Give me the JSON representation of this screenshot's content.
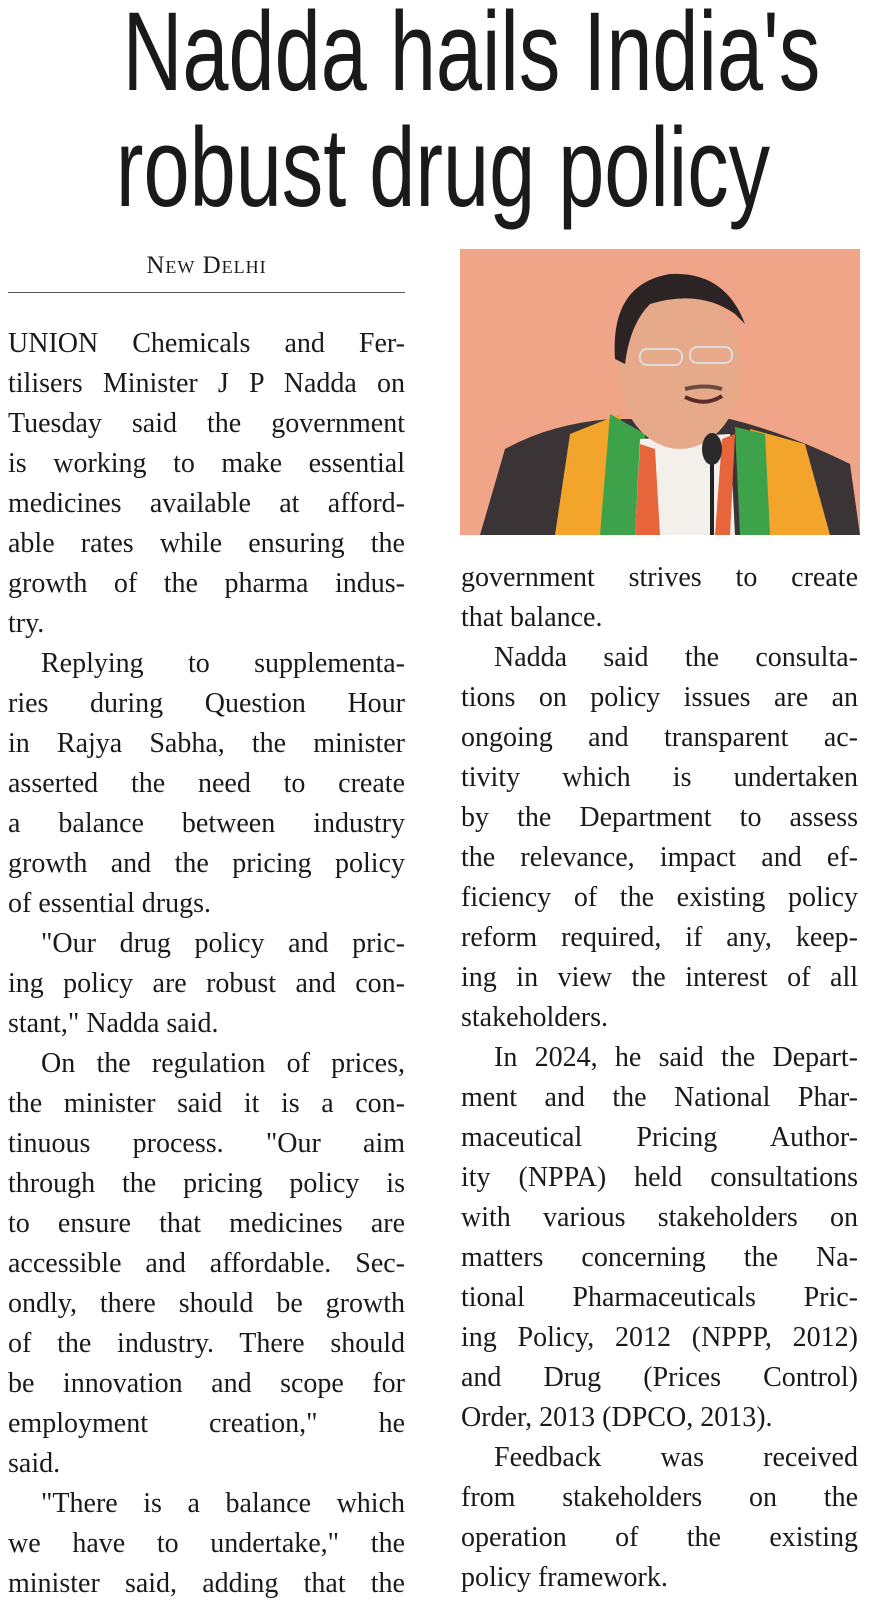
{
  "headline": {
    "line1": "Nadda hails India's",
    "line2": "robust drug policy"
  },
  "dateline": "New Delhi",
  "photo": {
    "subject": "smiling man in glasses with saffron and green scarf at microphone",
    "background_color": "#f0a488"
  },
  "columns": {
    "left": [
      {
        "t": "UNION Chemicals and Fer-"
      },
      {
        "t": "tilisers Minister J P Nadda on"
      },
      {
        "t": "Tuesday said the government"
      },
      {
        "t": "is working to make essential"
      },
      {
        "t": "medicines available at afford-"
      },
      {
        "t": "able rates while ensuring the"
      },
      {
        "t": "growth of the pharma indus-"
      },
      {
        "t": "try.",
        "end": true
      },
      {
        "t": "Replying to supplementa-",
        "ind": true
      },
      {
        "t": "ries during Question Hour"
      },
      {
        "t": "in Rajya Sabha, the minister"
      },
      {
        "t": "asserted the need to create"
      },
      {
        "t": "a balance between industry"
      },
      {
        "t": "growth and the pricing policy"
      },
      {
        "t": "of essential drugs.",
        "end": true
      },
      {
        "t": "\"Our drug policy and pric-",
        "ind": true
      },
      {
        "t": "ing policy are robust and con-"
      },
      {
        "t": "stant,\" Nadda said.",
        "end": true
      },
      {
        "t": "On the regulation of prices,",
        "ind": true
      },
      {
        "t": "the minister said it is a con-"
      },
      {
        "t": "tinuous process. \"Our aim"
      },
      {
        "t": "through the pricing policy is"
      },
      {
        "t": "to ensure that medicines are"
      },
      {
        "t": "accessible and affordable. Sec-"
      },
      {
        "t": "ondly, there should be growth"
      },
      {
        "t": "of the industry. There should"
      },
      {
        "t": "be innovation and scope for"
      },
      {
        "t": "employment creation,\" he"
      },
      {
        "t": "said.",
        "end": true
      },
      {
        "t": "\"There is a balance which",
        "ind": true
      },
      {
        "t": "we have to undertake,\" the"
      },
      {
        "t": "minister said, adding that the"
      }
    ],
    "right": [
      {
        "t": "government strives to create"
      },
      {
        "t": "that balance.",
        "end": true
      },
      {
        "t": "Nadda said the consulta-",
        "ind": true
      },
      {
        "t": "tions on policy issues are an"
      },
      {
        "t": "ongoing and transparent ac-"
      },
      {
        "t": "tivity which is undertaken"
      },
      {
        "t": "by the Department to assess"
      },
      {
        "t": "the relevance, impact and ef-"
      },
      {
        "t": "ficiency of the existing policy"
      },
      {
        "t": "reform required, if any, keep-"
      },
      {
        "t": "ing in view the interest of all"
      },
      {
        "t": "stakeholders.",
        "end": true
      },
      {
        "t": "In 2024, he said the Depart-",
        "ind": true
      },
      {
        "t": "ment and the National Phar-"
      },
      {
        "t": "maceutical Pricing Author-"
      },
      {
        "t": "ity (NPPA) held consultations"
      },
      {
        "t": "with various stakeholders on"
      },
      {
        "t": "matters concerning the Na-"
      },
      {
        "t": "tional Pharmaceuticals Pric-"
      },
      {
        "t": "ing Policy, 2012 (NPPP, 2012)"
      },
      {
        "t": "and Drug (Prices Control)"
      },
      {
        "t": "Order, 2013 (DPCO, 2013).",
        "end": true
      },
      {
        "t": "Feedback was received",
        "ind": true
      },
      {
        "t": "from stakeholders on the"
      },
      {
        "t": "operation of the existing"
      },
      {
        "t": "policy framework.",
        "end": true
      }
    ]
  }
}
